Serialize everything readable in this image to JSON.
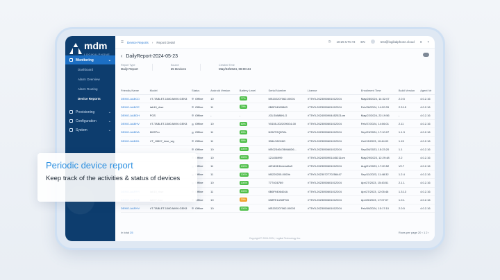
{
  "brand": {
    "name": "mdm",
    "sub": "LOGIKALPHONE"
  },
  "sidebar": {
    "groups": [
      {
        "label": "Monitoring",
        "active": true
      },
      {
        "label": "Provisioning",
        "active": false
      },
      {
        "label": "Configuration",
        "active": false
      },
      {
        "label": "System",
        "active": false
      }
    ],
    "sub_items": [
      {
        "label": "Dashboard"
      },
      {
        "label": "Alarm Overview"
      },
      {
        "label": "Alarm Routing"
      },
      {
        "label": "Device Reports",
        "active": true
      }
    ]
  },
  "topbar": {
    "breadcrumb": [
      "Device Reports",
      "Report Detail"
    ],
    "clock": "10:25 UTC+8",
    "lang": "EN",
    "user": "test@logikalphone.cloud"
  },
  "report": {
    "title": "DailyReport-2024-05-23",
    "meta": [
      {
        "label": "Report Type",
        "value": "Daily Report"
      },
      {
        "label": "Source",
        "value": "25 Devices"
      },
      {
        "label": "Created Time",
        "value": "May/23/2024, 08:00:44"
      }
    ],
    "columns": [
      "Friendly Name",
      "Model",
      "Status",
      "Android Version",
      "Battery Level",
      "Serial Number",
      "License",
      "Enrollment Time",
      "Build Version",
      "Agent Ve"
    ],
    "rows": [
      [
        "DEMO-AABCD",
        "VT-TABLET-1080-MMV-GEN3",
        "Offline",
        "10",
        "77%",
        "MS202207062-00001",
        "VT5Y5-2023050601012204",
        "May/28/2024, 14:32:07",
        "2.0.5",
        "4.0.2.16"
      ],
      [
        "DEMO-AABCE",
        "tab10_rkse",
        "Offline",
        "11",
        "79%",
        "0B6F94009863",
        "VT5Y5-2023050601012204",
        "Feb/26/2024, 14:20:33",
        "2.3.15",
        "4.0.2.16"
      ],
      [
        "DEMO-AABDH",
        "PGS",
        "Offline",
        "-",
        "-",
        "JGLSMM8KLG",
        "VT5Y5-2024050904452521cm",
        "May/22/2024, 22:19:56",
        "-",
        "4.0.2.16"
      ],
      [
        "DEMO-AABHV",
        "VT-TABLET-1080-MMV-GEN3",
        "Offline",
        "10",
        "60%",
        "V5155-2022090G4-00",
        "VT5Y5-2023050601012204",
        "Feb/27/2024, 14:06:01",
        "2.11",
        "4.0.2.16"
      ],
      [
        "DEMO-AABNA",
        "M22Pro",
        "Offline",
        "11",
        "63%",
        "N2MTGQ5TAL",
        "VT5Y5-2023050601012204",
        "Sep/23/2024, 17:10:07",
        "1.1.3",
        "4.0.2.16"
      ],
      [
        "DEMO-AABZA",
        "VT_HM07_rkse_wg",
        "Offline",
        "11",
        "99%",
        "308LC82H6G",
        "VT5Y5-2023050601012204",
        "Oct/13/2023, 10:44:02",
        "1.15",
        "4.0.2.16"
      ],
      [
        "",
        "",
        "Offline",
        "10",
        "100%",
        "MS02346478MA8D6...",
        "VT5Y5-2023050601012204",
        "Sep/26/2023, 15:23:20",
        "1.1",
        "4.0.2.16"
      ],
      [
        "",
        "",
        "Offline",
        "10",
        "100%",
        "121456999",
        "VT5Y5-2024050901445211cm",
        "May/29/2023, 12:29:48",
        "2.2",
        "4.0.2.16"
      ],
      [
        "",
        "",
        "Offline",
        "11",
        "100%",
        "d2f145134eeea5a3",
        "VT5Y5-2023050601012204",
        "Aug/21/2023, 17:20:52",
        "V2.7",
        "4.0.2.16"
      ],
      [
        "",
        "",
        "Offline",
        "11",
        "100%",
        "M0220205-0000b",
        "VT5Y5-2023072770256447",
        "Sep/11/2023, 11:48:32",
        "1.2.4",
        "4.0.2.16"
      ],
      [
        "",
        "",
        "Offline",
        "10",
        "100%",
        "77T4G6789",
        "VT5Y5-2023050601012204",
        "Apr/27/2023, 15:43:51",
        "2.1.1",
        "4.0.2.16"
      ],
      [
        "DEMO-AARFR",
        "tab10_rkse",
        "Offline",
        "11",
        "100%",
        "0B6F9406404A",
        "VT5Y5-2023050601012204",
        "Apr/27/2023, 12:05:46",
        "1.3.13",
        "4.0.2.16"
      ],
      [
        "DEMO-AARGE",
        "tab07-rkse",
        "Offline",
        "10",
        "20%",
        "MMFE1U56FSN",
        "VT5Y5-2023050601012204",
        "Apr/25/2023, 17:07:07",
        "1.0.1",
        "4.0.2.16"
      ],
      [
        "DEMO-AARHV",
        "VT-TABLET-1080-MMV-GEN3",
        "Offline",
        "10",
        "100%",
        "MS202207062-00003",
        "VT5Y5-2023050601012204",
        "Feb/09/2024, 15:17:10",
        "2.0.5",
        "4.0.2.16"
      ]
    ],
    "total": "25",
    "total_label": "In total",
    "rows_per_page_label": "Rows per page",
    "rows_per_page": "20",
    "pages": [
      "1",
      "2"
    ],
    "copyright": "Copyright © 2004-2024, Logikal Technology Inc."
  },
  "overlay": {
    "heading": "Periodic device report",
    "body": "Keep track of the activities & status of devices"
  },
  "colors": {
    "accent": "#1c6fc4",
    "sidebar": "#0d3d6e",
    "battery_ok": "#4fbf4a",
    "battery_low": "#f0a12b"
  }
}
